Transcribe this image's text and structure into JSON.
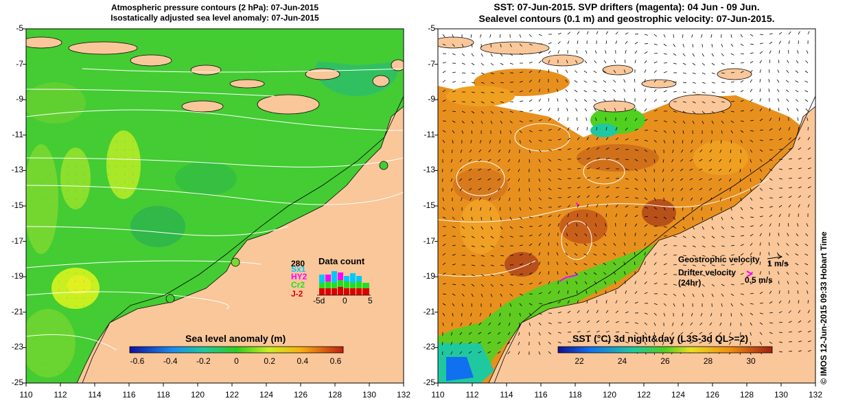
{
  "left_panel": {
    "title_line1": "Atmospheric pressure contours (2 hPa): 07-Jun-2015",
    "title_line2": "Isostatically adjusted sea level anomaly: 07-Jun-2015",
    "x_ticks": [
      "110",
      "112",
      "114",
      "116",
      "118",
      "120",
      "122",
      "124",
      "126",
      "128",
      "130",
      "132"
    ],
    "y_ticks": [
      "-5",
      "-7",
      "-9",
      "-11",
      "-13",
      "-15",
      "-17",
      "-19",
      "-21",
      "-23",
      "-25"
    ],
    "colorbar_title": "Sea level anomaly (m)",
    "colorbar_ticks": [
      "-0.6",
      "-0.4",
      "-0.2",
      "0",
      "0.2",
      "0.4",
      "0.6"
    ],
    "inset": {
      "title": "Data count",
      "count": "280",
      "sat1": "Sx1",
      "sat2": "HY2",
      "sat3": "Cr2",
      "sat4": "J-2",
      "x_ticks": [
        "-5d",
        "0",
        "5"
      ],
      "colors": {
        "sat1": "#00c8ff",
        "sat2": "#ff00ff",
        "sat3": "#22dd22",
        "sat4": "#dd0000"
      }
    }
  },
  "right_panel": {
    "title_line1": "SST: 07-Jun-2015. SVP drifters (magenta): 04 Jun - 09 Jun.",
    "title_line2": "Sealevel contours (0.1 m) and geostrophic velocity: 07-Jun-2015.",
    "x_ticks": [
      "110",
      "112",
      "114",
      "116",
      "118",
      "120",
      "122",
      "124",
      "126",
      "128",
      "130",
      "132"
    ],
    "y_ticks": [
      "-5",
      "-7",
      "-9",
      "-11",
      "-13",
      "-15",
      "-17",
      "-19",
      "-21",
      "-23",
      "-25"
    ],
    "colorbar_title": "SST (°C) 3d night&day (L3S-3d QL>=2)",
    "colorbar_ticks": [
      "22",
      "24",
      "26",
      "28",
      "30"
    ],
    "legend": {
      "geo": "Geostrophic velocity",
      "geo_scale": "1 m/s",
      "drifter_line1": "Drifter velocity",
      "drifter_line2": "(24hr)",
      "drifter_scale": "0.5 m/s"
    }
  },
  "credit": "© IMOS 12-Jun-2015 09:33 Hobart Time",
  "colors": {
    "land": "#f9c79a",
    "sea_green": "#44cc33",
    "sst_orange": "#e8901e",
    "sst_dark": "#b8501a",
    "contour": "#ffffff"
  }
}
